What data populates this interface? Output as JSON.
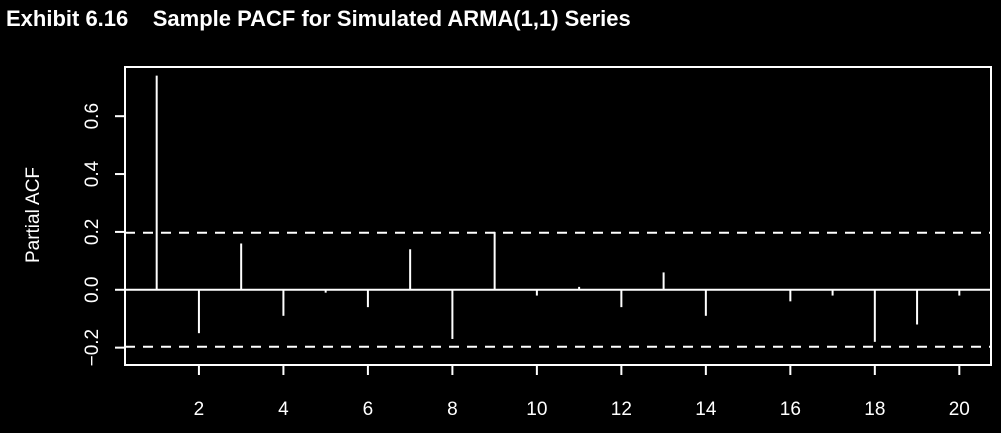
{
  "chart_data": {
    "type": "bar",
    "title": "Exhibit 6.16    Sample PACF for Simulated ARMA(1,1) Series",
    "xlabel": "",
    "ylabel": "Partial ACF",
    "xlim": [
      0.25,
      20.75
    ],
    "ylim": [
      -0.26,
      0.77
    ],
    "x_ticks": [
      2,
      4,
      6,
      8,
      10,
      12,
      14,
      16,
      18,
      20
    ],
    "y_ticks": [
      -0.2,
      0.0,
      0.2,
      0.4,
      0.6
    ],
    "y_tick_labels": [
      "−0.2",
      "0.0",
      "0.2",
      "0.4",
      "0.6"
    ],
    "confidence_bounds": [
      0.197,
      -0.197
    ],
    "grid": false,
    "lags": [
      1,
      2,
      3,
      4,
      5,
      6,
      7,
      8,
      9,
      10,
      11,
      12,
      13,
      14,
      15,
      16,
      17,
      18,
      19,
      20
    ],
    "values": [
      0.74,
      -0.15,
      0.16,
      -0.09,
      -0.01,
      -0.06,
      0.14,
      -0.17,
      0.2,
      -0.02,
      0.01,
      -0.06,
      0.06,
      -0.09,
      0.0,
      -0.04,
      -0.02,
      -0.18,
      -0.12,
      -0.02
    ],
    "colors": {
      "background": "#000000",
      "foreground": "#ffffff"
    }
  }
}
